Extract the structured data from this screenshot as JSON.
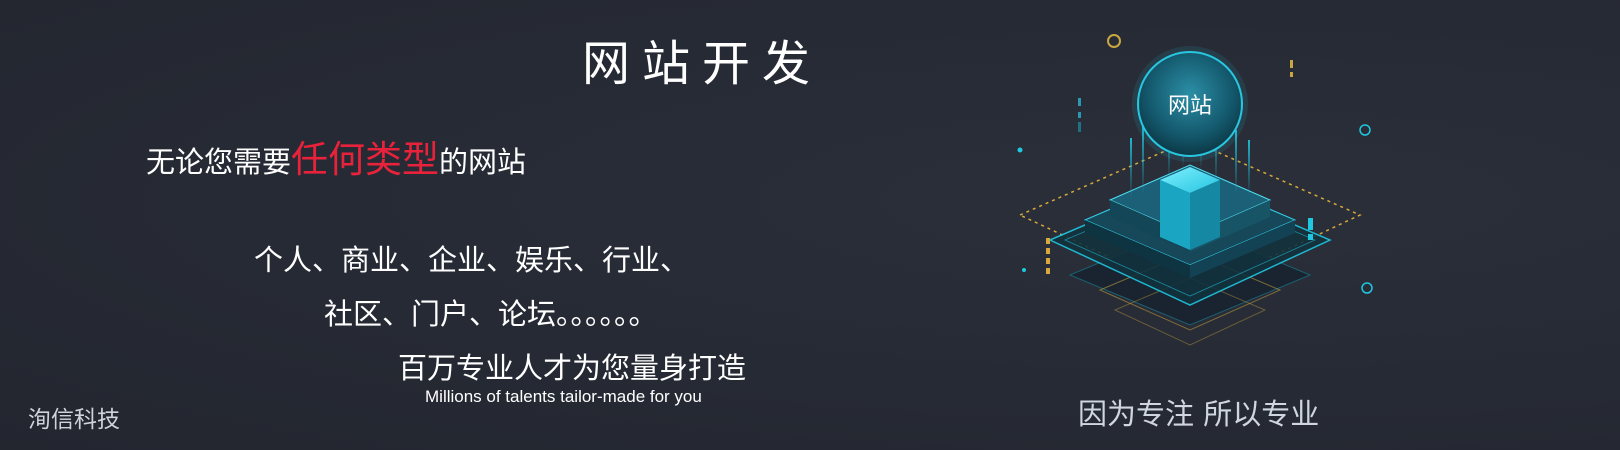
{
  "title": "网站开发",
  "subtitle": {
    "prefix": "无论您需要",
    "highlight": "任何类型",
    "suffix": "的网站"
  },
  "types_line1": "个人、商业、企业、娱乐、行业、",
  "types_line2": "社区、门户、论坛。。。。。。",
  "slogan_cn": "百万专业人才为您量身打造",
  "slogan_en": "Millions of talents tailor-made for you",
  "brand": "洵信科技",
  "tagline": "因为专注 所以专业",
  "illustration": {
    "orb_label": "网站",
    "icon": "server-stack-illustration"
  },
  "colors": {
    "background": "#262a34",
    "accent_red": "#e8223a",
    "accent_cyan": "#1fc7e0",
    "accent_gold": "#d8a93a"
  }
}
